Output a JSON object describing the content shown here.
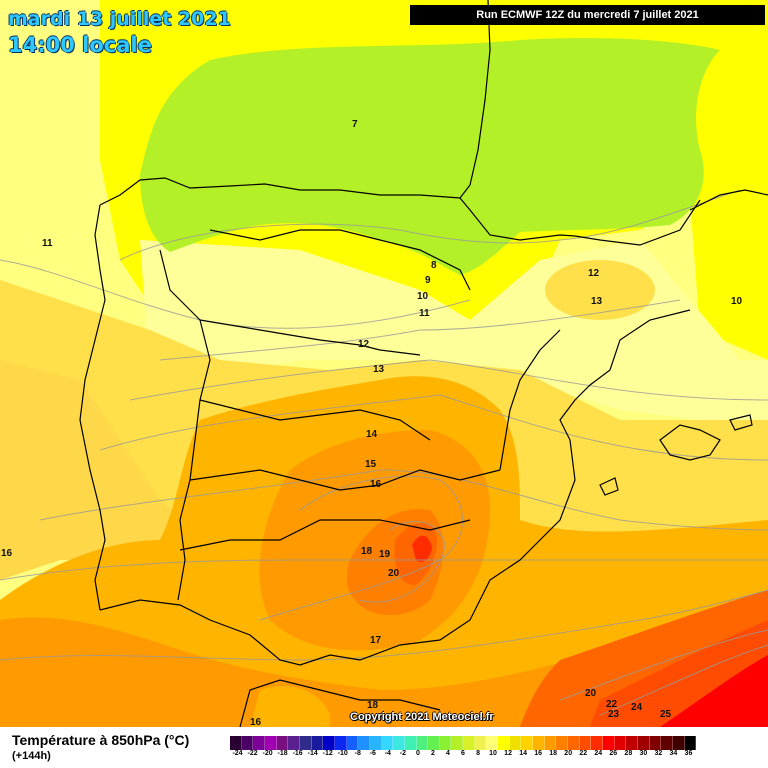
{
  "header": {
    "date_title": "mardi 13 juillet 2021",
    "time_title": "14:00 locale",
    "run_info": "Run ECMWF 12Z du mercredi 7 juillet 2021"
  },
  "footer": {
    "variable_title": "Température à 850hPa (°C)",
    "lead_time": "(+144h)",
    "copyright": "Copyright 2021 Meteociel.fr"
  },
  "legend": {
    "colors": [
      "#2a0033",
      "#4c0066",
      "#7d0099",
      "#a000b0",
      "#7a1080",
      "#5a2090",
      "#302c8c",
      "#1a1a9e",
      "#0000c8",
      "#0a28f0",
      "#1460ff",
      "#1e90ff",
      "#28b4ff",
      "#34d8ff",
      "#3ce8e0",
      "#40f0b0",
      "#50f080",
      "#64f050",
      "#8cf032",
      "#b4f028",
      "#d8f028",
      "#f0f050",
      "#ffff78",
      "#ffff00",
      "#f0e000",
      "#ffd200",
      "#ffb400",
      "#ff9a00",
      "#ff8000",
      "#ff6600",
      "#ff4c00",
      "#ff2c00",
      "#ff0000",
      "#e00000",
      "#c00000",
      "#a00000",
      "#800000",
      "#600000",
      "#400000",
      "#000000"
    ],
    "ticks": [
      "-24",
      "-22",
      "-20",
      "-18",
      "-16",
      "-14",
      "-12",
      "-10",
      "-8",
      "-6",
      "-4",
      "-2",
      "0",
      "2",
      "4",
      "6",
      "8",
      "10",
      "12",
      "14",
      "16",
      "18",
      "20",
      "22",
      "24",
      "26",
      "28",
      "30",
      "32",
      "34",
      "36"
    ]
  },
  "map_labels": [
    {
      "text": "7",
      "name": "isotherm-7"
    },
    {
      "text": "11",
      "name": "isotherm-11-west"
    },
    {
      "text": "8",
      "name": "isotherm-8"
    },
    {
      "text": "9",
      "name": "isotherm-9"
    },
    {
      "text": "10",
      "name": "isotherm-10"
    },
    {
      "text": "11",
      "name": "isotherm-11"
    },
    {
      "text": "12",
      "name": "isotherm-12-east"
    },
    {
      "text": "13",
      "name": "isotherm-13-east"
    },
    {
      "text": "10",
      "name": "isotherm-10-east"
    },
    {
      "text": "12",
      "name": "isotherm-12"
    },
    {
      "text": "13",
      "name": "isotherm-13"
    },
    {
      "text": "14",
      "name": "isotherm-14"
    },
    {
      "text": "15",
      "name": "isotherm-15"
    },
    {
      "text": "16",
      "name": "isotherm-16"
    },
    {
      "text": "16",
      "name": "isotherm-16-west"
    },
    {
      "text": "18",
      "name": "isotherm-18"
    },
    {
      "text": "19",
      "name": "isotherm-19"
    },
    {
      "text": "20",
      "name": "isotherm-20"
    },
    {
      "text": "17",
      "name": "isotherm-17"
    },
    {
      "text": "18",
      "name": "isotherm-18-south"
    },
    {
      "text": "16",
      "name": "isotherm-16-south"
    },
    {
      "text": "20",
      "name": "isotherm-20-se"
    },
    {
      "text": "22",
      "name": "isotherm-22"
    },
    {
      "text": "23",
      "name": "isotherm-23"
    },
    {
      "text": "24",
      "name": "isotherm-24"
    },
    {
      "text": "25",
      "name": "isotherm-25"
    }
  ]
}
